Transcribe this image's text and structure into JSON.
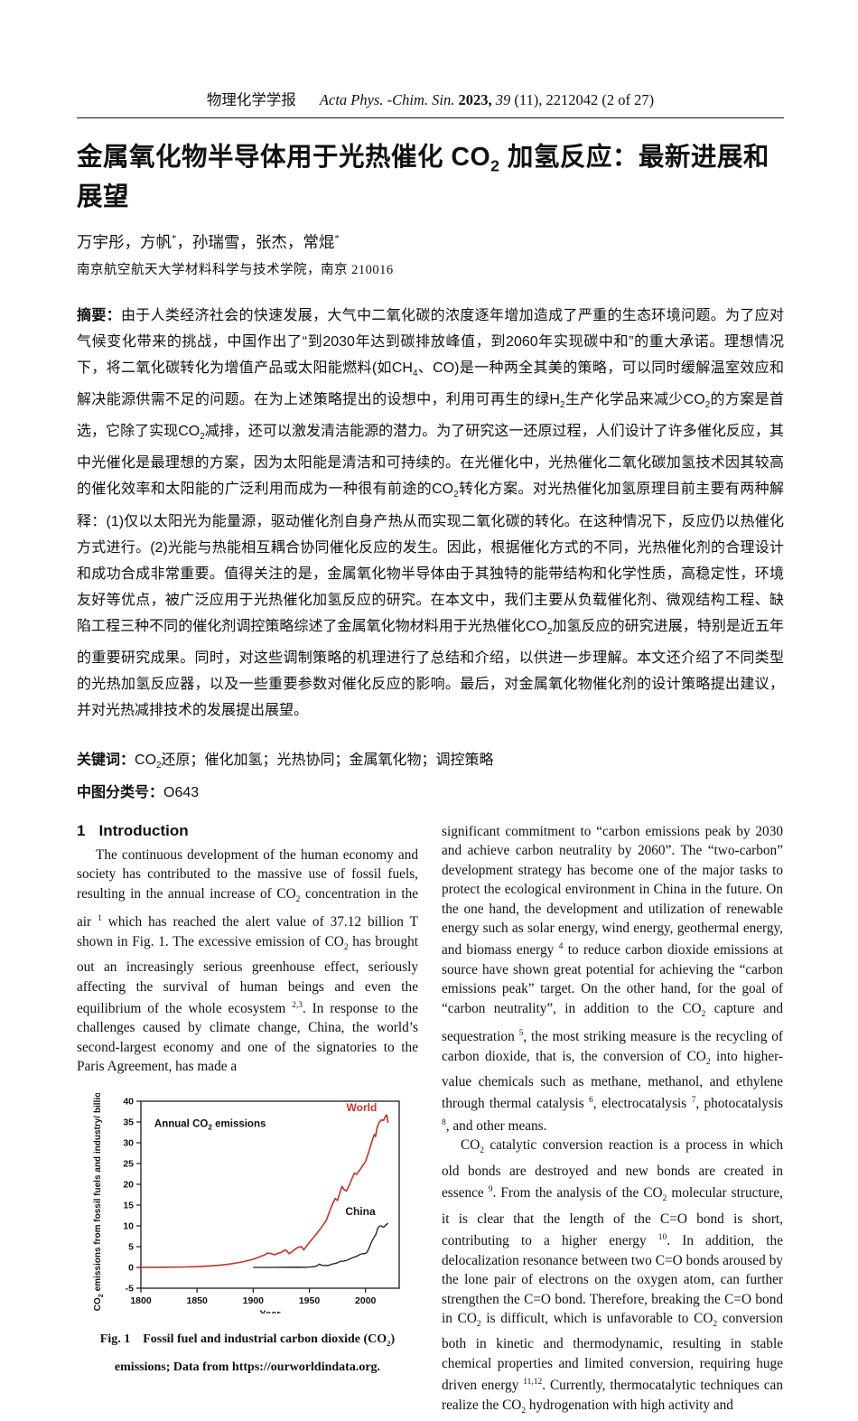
{
  "header": {
    "segments": [
      {
        "t": "物理化学学报"
      },
      {
        "t": "gap",
        "gap": true
      },
      {
        "t": "Acta Phys. -Chim. Sin. ",
        "cls": "i"
      },
      {
        "t": "2023, ",
        "cls": "b"
      },
      {
        "t": "39",
        "cls": "i"
      },
      {
        "t": " (11), 2212042 (2 of 27)"
      }
    ]
  },
  "title": [
    {
      "t": "金属氧化物半导体用于光热催化 "
    },
    {
      "t": "CO"
    },
    {
      "t": "2",
      "tag": "sub"
    },
    {
      "t": " 加氢反应：最新进展和展望"
    }
  ],
  "authors": [
    {
      "t": "万宇彤，方帆"
    },
    {
      "t": "*",
      "tag": "sup"
    },
    {
      "t": "，孙瑞雪，张杰，常焜"
    },
    {
      "t": "*",
      "tag": "sup"
    }
  ],
  "affiliation": "南京航空航天大学材料科学与技术学院，南京 210016",
  "abstract": {
    "label": "摘要：",
    "body": [
      {
        "t": "由于人类经济社会的快速发展，大气中二氧化碳的浓度逐年增加造成了严重的生态环境问题。为了应对气候变化带来的挑战，中国作出了“到2030年达到碳排放峰值，到2060年实现碳中和”的重大承诺。理想情况下，将二氧化碳转化为增值产品或太阳能燃料(如CH"
      },
      {
        "t": "4",
        "tag": "sub"
      },
      {
        "t": "、CO)是一种两全其美的策略，可以同时缓解温室效应和解决能源供需不足的问题。在为上述策略提出的设想中，利用可再生的绿H"
      },
      {
        "t": "2",
        "tag": "sub"
      },
      {
        "t": "生产化学品来减少CO"
      },
      {
        "t": "2",
        "tag": "sub"
      },
      {
        "t": "的方案是首选，它除了实现CO"
      },
      {
        "t": "2",
        "tag": "sub"
      },
      {
        "t": "减排，还可以激发清洁能源的潜力。为了研究这一还原过程，人们设计了许多催化反应，其中光催化是最理想的方案，因为太阳能是清洁和可持续的。在光催化中，光热催化二氧化碳加氢技术因其较高的催化效率和太阳能的广泛利用而成为一种很有前途的CO"
      },
      {
        "t": "2",
        "tag": "sub"
      },
      {
        "t": "转化方案。对光热催化加氢原理目前主要有两种解释：(1)仅以太阳光为能量源，驱动催化剂自身产热从而实现二氧化碳的转化。在这种情况下，反应仍以热催化方式进行。(2)光能与热能相互耦合协同催化反应的发生。因此，根据催化方式的不同，光热催化剂的合理设计和成功合成非常重要。值得关注的是，金属氧化物半导体由于其独特的能带结构和化学性质，高稳定性，环境友好等优点，被广泛应用于光热催化加氢反应的研究。在本文中，我们主要从负载催化剂、微观结构工程、缺陷工程三种不同的催化剂调控策略综述了金属氧化物材料用于光热催化CO"
      },
      {
        "t": "2",
        "tag": "sub"
      },
      {
        "t": "加氢反应的研究进展，特别是近五年的重要研究成果。同时，对这些调制策略的机理进行了总结和介绍，以供进一步理解。本文还介绍了不同类型的光热加氢反应器，以及一些重要参数对催化反应的影响。最后，对金属氧化物催化剂的设计策略提出建议，并对光热减排技术的发展提出展望。"
      }
    ]
  },
  "keywords": {
    "label": "关键词：",
    "body": [
      {
        "t": "CO"
      },
      {
        "t": "2",
        "tag": "sub"
      },
      {
        "t": "还原；催化加氢；光热协同；金属氧化物；调控策略"
      }
    ]
  },
  "clc": {
    "label": "中图分类号：",
    "value": "O643"
  },
  "section": {
    "number": "1",
    "title": "Introduction"
  },
  "left_paragraph": [
    {
      "t": "The continuous development of the human economy and society has contributed to the massive use of fossil fuels, resulting in the annual increase of CO"
    },
    {
      "t": "2",
      "tag": "sub"
    },
    {
      "t": " concentration in the air "
    },
    {
      "t": "1",
      "tag": "sup"
    },
    {
      "t": " which has reached the alert value of 37.12 billion T shown in Fig. 1. The excessive emission of CO"
    },
    {
      "t": "2",
      "tag": "sub"
    },
    {
      "t": " has brought out an increasingly serious greenhouse effect, seriously affecting the survival of human beings and even the equilibrium of the whole ecosystem "
    },
    {
      "t": "2,3",
      "tag": "sup"
    },
    {
      "t": ". In response to the challenges caused by climate change, China, the world’s second-largest economy and one of the signatories to the Paris Agreement, has made a"
    }
  ],
  "right_paragraph_1": [
    {
      "t": "significant commitment to “carbon emissions peak by 2030 and achieve carbon neutrality by 2060”. The “two-carbon” development strategy has become one of the major tasks to protect the ecological environment in China in the future. On the one hand, the development and utilization of renewable energy such as solar energy, wind energy, geothermal energy, and biomass energy "
    },
    {
      "t": "4",
      "tag": "sup"
    },
    {
      "t": " to reduce carbon dioxide emissions at source have shown great potential for achieving the “carbon emissions peak” target. On the other hand, for the goal of “carbon neutrality”, in addition to the CO"
    },
    {
      "t": "2",
      "tag": "sub"
    },
    {
      "t": " capture and sequestration "
    },
    {
      "t": "5",
      "tag": "sup"
    },
    {
      "t": ", the most striking measure is the recycling of carbon dioxide, that is, the conversion of CO"
    },
    {
      "t": "2",
      "tag": "sub"
    },
    {
      "t": " into higher-value chemicals such as methane, methanol, and ethylene through thermal catalysis "
    },
    {
      "t": "6",
      "tag": "sup"
    },
    {
      "t": ", electrocatalysis "
    },
    {
      "t": "7",
      "tag": "sup"
    },
    {
      "t": ", photocatalysis "
    },
    {
      "t": "8",
      "tag": "sup"
    },
    {
      "t": ", and other means."
    }
  ],
  "right_paragraph_2": [
    {
      "t": "CO"
    },
    {
      "t": "2",
      "tag": "sub"
    },
    {
      "t": " catalytic conversion reaction is a process in which old bonds are destroyed and new bonds are created in essence "
    },
    {
      "t": "9",
      "tag": "sup"
    },
    {
      "t": ". From the analysis of the CO"
    },
    {
      "t": "2",
      "tag": "sub"
    },
    {
      "t": " molecular structure, it is clear that the length of the C=O bond is short, contributing to a higher energy "
    },
    {
      "t": "10",
      "tag": "sup"
    },
    {
      "t": ". In addition, the delocalization resonance between two C=O bonds aroused by the lone pair of electrons on the oxygen atom, can further strengthen the C=O bond. Therefore, breaking the C=O bond in CO"
    },
    {
      "t": "2",
      "tag": "sub"
    },
    {
      "t": " is difficult, which is unfavorable to CO"
    },
    {
      "t": "2",
      "tag": "sub"
    },
    {
      "t": " conversion both in kinetic and thermodynamic, resulting in stable chemical properties and limited conversion, requiring huge driven energy "
    },
    {
      "t": "11,12",
      "tag": "sup"
    },
    {
      "t": ". Currently, thermocatalytic techniques can realize the CO"
    },
    {
      "t": "2",
      "tag": "sub"
    },
    {
      "t": " hydrogenation with high activity and"
    }
  ],
  "figure_caption": {
    "line1": [
      {
        "t": "Fig. 1  Fossil fuel and industrial carbon dioxide (CO"
      },
      {
        "t": "2",
        "tag": "sub"
      },
      {
        "t": ")"
      }
    ],
    "line2": "emissions; Data from https://ourworldindata.org."
  },
  "chart_data": {
    "type": "line",
    "annotation": [
      {
        "t": "Annual CO"
      },
      {
        "t": "2",
        "sub": true
      },
      {
        "t": " emissions"
      }
    ],
    "annotation_pos": [
      1812,
      33.8
    ],
    "xlabel": "Year",
    "ylabel": [
      {
        "t": "CO"
      },
      {
        "t": "2",
        "sub": true
      },
      {
        "t": " emissions from fossil fuels and industry/ billion T"
      }
    ],
    "xlim": [
      1800,
      2030
    ],
    "ylim": [
      -5,
      40
    ],
    "xticks": [
      1800,
      1850,
      1900,
      1950,
      2000
    ],
    "yticks": [
      -5,
      0,
      5,
      10,
      15,
      20,
      25,
      30,
      35,
      40
    ],
    "axis_color": "#1a1a1a",
    "series": [
      {
        "name": "World",
        "color": "#c0352b",
        "width": 1.6,
        "label_pos": [
          1983,
          37.6
        ],
        "points": [
          [
            1800,
            0.03
          ],
          [
            1820,
            0.05
          ],
          [
            1840,
            0.1
          ],
          [
            1850,
            0.2
          ],
          [
            1860,
            0.34
          ],
          [
            1870,
            0.53
          ],
          [
            1880,
            0.85
          ],
          [
            1890,
            1.3
          ],
          [
            1900,
            1.95
          ],
          [
            1905,
            2.5
          ],
          [
            1910,
            3.0
          ],
          [
            1913,
            3.45
          ],
          [
            1916,
            3.35
          ],
          [
            1919,
            3.05
          ],
          [
            1922,
            3.4
          ],
          [
            1925,
            3.65
          ],
          [
            1929,
            4.25
          ],
          [
            1932,
            3.3
          ],
          [
            1935,
            3.9
          ],
          [
            1938,
            4.5
          ],
          [
            1940,
            4.85
          ],
          [
            1943,
            5.0
          ],
          [
            1945,
            4.2
          ],
          [
            1948,
            5.3
          ],
          [
            1950,
            6.0
          ],
          [
            1955,
            7.6
          ],
          [
            1960,
            9.4
          ],
          [
            1965,
            11.3
          ],
          [
            1970,
            14.9
          ],
          [
            1973,
            16.6
          ],
          [
            1975,
            16.1
          ],
          [
            1979,
            19.5
          ],
          [
            1981,
            18.7
          ],
          [
            1983,
            18.4
          ],
          [
            1986,
            20.1
          ],
          [
            1990,
            22.7
          ],
          [
            1992,
            22.4
          ],
          [
            1995,
            23.5
          ],
          [
            2000,
            25.5
          ],
          [
            2003,
            27.9
          ],
          [
            2005,
            29.7
          ],
          [
            2007,
            31.4
          ],
          [
            2008,
            32.0
          ],
          [
            2009,
            31.5
          ],
          [
            2010,
            33.3
          ],
          [
            2012,
            34.8
          ],
          [
            2014,
            35.5
          ],
          [
            2016,
            35.4
          ],
          [
            2018,
            36.5
          ],
          [
            2019,
            36.7
          ],
          [
            2020,
            34.8
          ]
        ]
      },
      {
        "name": "China",
        "color": "#1a1a1a",
        "width": 1.3,
        "label_pos": [
          1982,
          12.6
        ],
        "points": [
          [
            1900,
            0.0
          ],
          [
            1910,
            0.01
          ],
          [
            1920,
            0.02
          ],
          [
            1930,
            0.04
          ],
          [
            1940,
            0.07
          ],
          [
            1945,
            0.05
          ],
          [
            1950,
            0.08
          ],
          [
            1953,
            0.15
          ],
          [
            1956,
            0.3
          ],
          [
            1958,
            0.6
          ],
          [
            1959,
            0.8
          ],
          [
            1961,
            0.55
          ],
          [
            1963,
            0.44
          ],
          [
            1965,
            0.5
          ],
          [
            1967,
            0.45
          ],
          [
            1970,
            0.78
          ],
          [
            1973,
            0.95
          ],
          [
            1975,
            1.1
          ],
          [
            1978,
            1.5
          ],
          [
            1980,
            1.5
          ],
          [
            1983,
            1.7
          ],
          [
            1985,
            1.9
          ],
          [
            1988,
            2.3
          ],
          [
            1990,
            2.45
          ],
          [
            1993,
            2.8
          ],
          [
            1995,
            3.1
          ],
          [
            1997,
            3.3
          ],
          [
            1999,
            3.3
          ],
          [
            2001,
            3.5
          ],
          [
            2003,
            4.5
          ],
          [
            2005,
            5.9
          ],
          [
            2007,
            7.0
          ],
          [
            2008,
            7.4
          ],
          [
            2009,
            7.8
          ],
          [
            2010,
            8.6
          ],
          [
            2011,
            9.5
          ],
          [
            2012,
            9.8
          ],
          [
            2013,
            10.0
          ],
          [
            2014,
            10.0
          ],
          [
            2015,
            9.8
          ],
          [
            2016,
            9.7
          ],
          [
            2017,
            9.9
          ],
          [
            2018,
            10.2
          ],
          [
            2019,
            10.4
          ],
          [
            2020,
            10.7
          ]
        ]
      }
    ]
  }
}
